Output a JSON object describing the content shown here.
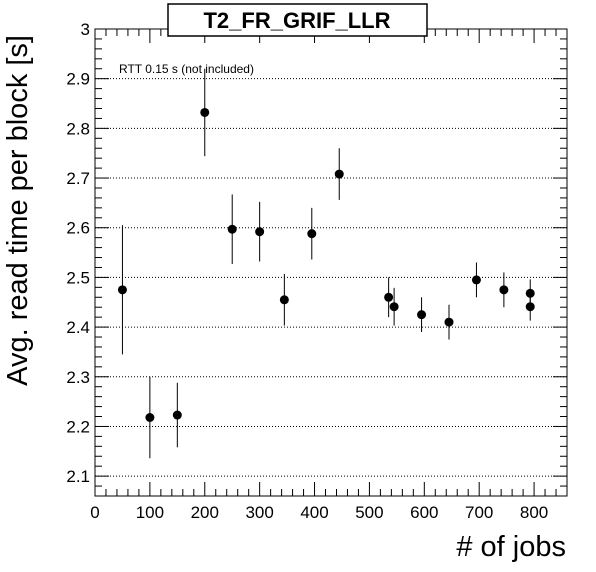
{
  "chart_data": {
    "type": "scatter",
    "title": "T2_FR_GRIF_LLR",
    "xlabel": "# of jobs",
    "ylabel": "Avg. read time per block [s]",
    "annotation": "RTT 0.15 s (not included)",
    "xlim": [
      0,
      860
    ],
    "ylim": [
      2.06,
      3.0
    ],
    "xticks": [
      0,
      100,
      200,
      300,
      400,
      500,
      600,
      700,
      800
    ],
    "yticks": [
      2.1,
      2.2,
      2.3,
      2.4,
      2.5,
      2.6,
      2.7,
      2.8,
      2.9,
      3.0
    ],
    "ytick_labels": [
      "2.1",
      "2.2",
      "2.3",
      "2.4",
      "2.5",
      "2.6",
      "2.7",
      "2.8",
      "2.9",
      "3"
    ],
    "grid": "horizontal-dotted",
    "marker_color": "#000000",
    "points": [
      {
        "x": 50,
        "y": 2.475,
        "err": 0.13
      },
      {
        "x": 100,
        "y": 2.218,
        "err": 0.082
      },
      {
        "x": 150,
        "y": 2.223,
        "err": 0.065
      },
      {
        "x": 200,
        "y": 2.832,
        "err": 0.088
      },
      {
        "x": 250,
        "y": 2.597,
        "err": 0.07
      },
      {
        "x": 300,
        "y": 2.592,
        "err": 0.06
      },
      {
        "x": 345,
        "y": 2.455,
        "err": 0.052
      },
      {
        "x": 395,
        "y": 2.588,
        "err": 0.052
      },
      {
        "x": 445,
        "y": 2.708,
        "err": 0.052
      },
      {
        "x": 535,
        "y": 2.46,
        "err": 0.04
      },
      {
        "x": 545,
        "y": 2.441,
        "err": 0.038
      },
      {
        "x": 595,
        "y": 2.425,
        "err": 0.035
      },
      {
        "x": 645,
        "y": 2.41,
        "err": 0.035
      },
      {
        "x": 695,
        "y": 2.495,
        "err": 0.035
      },
      {
        "x": 745,
        "y": 2.475,
        "err": 0.035
      },
      {
        "x": 793,
        "y": 2.468,
        "err": 0.028
      },
      {
        "x": 793,
        "y": 2.441,
        "err": 0.028
      }
    ]
  }
}
